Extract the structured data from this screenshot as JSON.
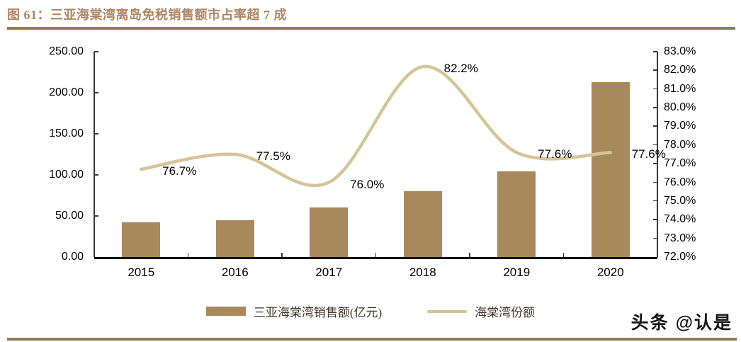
{
  "title": "图 61：三亚海棠湾离岛免税销售额市占率超 7 成",
  "watermark": "头条 @认是",
  "colors": {
    "bar": "#a8895b",
    "line": "#d6c496",
    "title": "#ae8663",
    "rule": "#997a52"
  },
  "chart_data": {
    "type": "bar+line combo, dual axis",
    "title": "图 61：三亚海棠湾离岛免税销售额市占率超 7 成",
    "categories": [
      "2015",
      "2016",
      "2017",
      "2018",
      "2019",
      "2020"
    ],
    "series": [
      {
        "name": "三亚海棠湾销售额(亿元)",
        "type": "bar",
        "axis": "left",
        "values": [
          42,
          45,
          60,
          80,
          104,
          213
        ]
      },
      {
        "name": "海棠湾份额",
        "type": "line",
        "axis": "right",
        "values": [
          76.7,
          77.5,
          76.0,
          82.2,
          77.6,
          77.6
        ],
        "point_labels": [
          "76.7%",
          "77.5%",
          "76.0%",
          "82.2%",
          "77.6%",
          "77.6%"
        ]
      }
    ],
    "left_axis": {
      "min": 0,
      "max": 250,
      "step": 50,
      "ticks": [
        {
          "label": "0.00",
          "value": 0
        },
        {
          "label": "50.00",
          "value": 50
        },
        {
          "label": "100.00",
          "value": 100
        },
        {
          "label": "150.00",
          "value": 150
        },
        {
          "label": "200.00",
          "value": 200
        },
        {
          "label": "250.00",
          "value": 250
        }
      ]
    },
    "right_axis": {
      "min": 72,
      "max": 83,
      "step": 1,
      "ticks": [
        {
          "label": "72.0%",
          "value": 72
        },
        {
          "label": "73.0%",
          "value": 73
        },
        {
          "label": "74.0%",
          "value": 74
        },
        {
          "label": "75.0%",
          "value": 75
        },
        {
          "label": "76.0%",
          "value": 76
        },
        {
          "label": "77.0%",
          "value": 77
        },
        {
          "label": "78.0%",
          "value": 78
        },
        {
          "label": "79.0%",
          "value": 79
        },
        {
          "label": "80.0%",
          "value": 80
        },
        {
          "label": "81.0%",
          "value": 81
        },
        {
          "label": "82.0%",
          "value": 82
        },
        {
          "label": "83.0%",
          "value": 83
        }
      ]
    },
    "legend": [
      {
        "label": "三亚海棠湾销售额(亿元)",
        "swatch": "bar"
      },
      {
        "label": "海棠湾份额",
        "swatch": "line"
      }
    ],
    "legend_position": "bottom",
    "grid": false
  }
}
